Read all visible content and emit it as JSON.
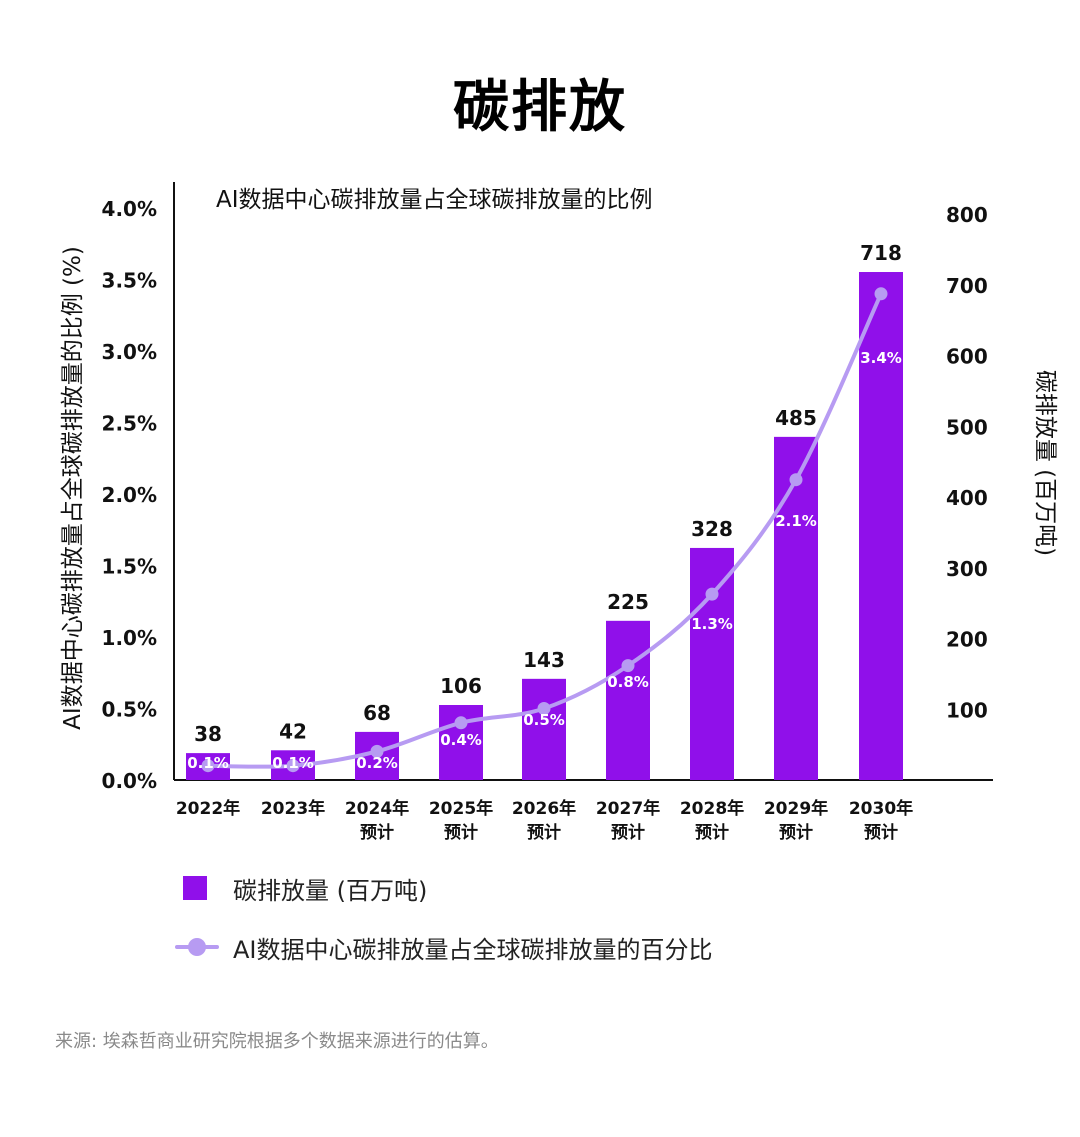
{
  "title": "碳排放",
  "colors": {
    "bar": "#9010ea",
    "line": "#b79bf2",
    "axis": "#111111",
    "source": "#8a8a8a"
  },
  "chart_data": {
    "type": "bar",
    "title": "AI数据中心碳排放量占全球碳排放量的比例",
    "categories": [
      "2022年",
      "2023年",
      "2024年\n预计",
      "2025年\n预计",
      "2026年\n预计",
      "2027年\n预计",
      "2028年\n预计",
      "2029年\n预计",
      "2030年\n预计"
    ],
    "ylabel_left": "AI数据中心碳排放量占全球碳排放量的比例 (%)",
    "ylabel_right": "碳排放量 (百万吨)",
    "left_ticks": [
      "0.0%",
      "0.5%",
      "1.0%",
      "1.5%",
      "2.0%",
      "2.5%",
      "3.0%",
      "3.5%",
      "4.0%"
    ],
    "left_ylim": [
      0,
      4.0
    ],
    "right_ticks": [
      "100",
      "200",
      "300",
      "400",
      "500",
      "600",
      "700",
      "800"
    ],
    "right_ylim": [
      0,
      800
    ],
    "series": [
      {
        "name": "碳排放量 (百万吨)",
        "kind": "bar",
        "axis": "right",
        "values": [
          38,
          42,
          68,
          106,
          143,
          225,
          328,
          485,
          718
        ]
      },
      {
        "name": "AI数据中心碳排放量占全球碳排放量的百分比",
        "kind": "line",
        "axis": "left",
        "values": [
          0.1,
          0.1,
          0.2,
          0.4,
          0.5,
          0.8,
          1.3,
          2.1,
          3.4
        ],
        "labels": [
          "0.1%",
          "0.1%",
          "0.2%",
          "0.4%",
          "0.5%",
          "0.8%",
          "1.3%",
          "2.1%",
          "3.4%"
        ]
      }
    ]
  },
  "source": "来源: 埃森哲商业研究院根据多个数据来源进行的估算。"
}
